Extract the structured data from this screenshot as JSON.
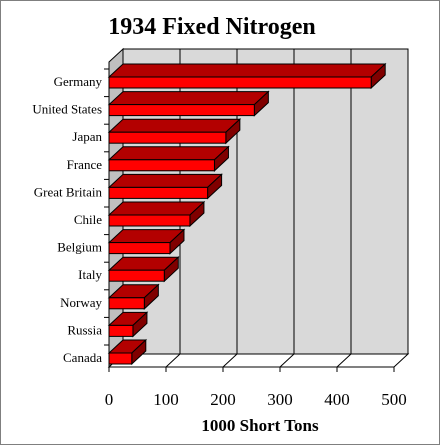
{
  "chart_data": {
    "type": "bar",
    "orientation": "horizontal",
    "style": "3d",
    "title": "1934 Fixed Nitrogen",
    "xlabel": "1000 Short Tons",
    "ylabel": "",
    "categories": [
      "Germany",
      "United States",
      "Japan",
      "France",
      "Great Britain",
      "Chile",
      "Belgium",
      "Italy",
      "Norway",
      "Russia",
      "Canada"
    ],
    "values": [
      460,
      255,
      205,
      185,
      173,
      142,
      107,
      97,
      62,
      42,
      40
    ],
    "xlim": [
      0,
      500
    ],
    "xticks": [
      "0",
      "100",
      "200",
      "300",
      "400",
      "500"
    ],
    "grid": true,
    "colors": {
      "bar_front": "#ff0000",
      "bar_top": "#b30000",
      "bar_side": "#800000",
      "back_wall": "#d9d9d9",
      "floor": "#ffffff"
    }
  }
}
